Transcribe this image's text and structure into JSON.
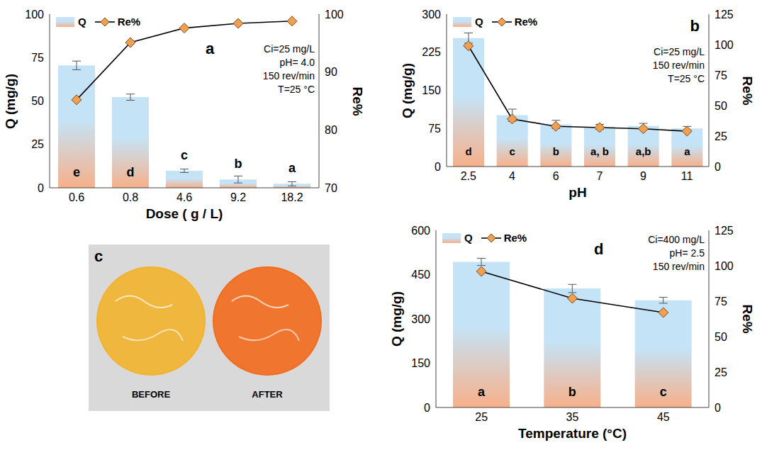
{
  "chart_data": [
    {
      "type": "bar",
      "title": "a",
      "categories": [
        "0.6",
        "0.8",
        "4.6",
        "9.2",
        "18.2"
      ],
      "x_label": "Dose ( g / L)",
      "y_label": "Q (mg/g)",
      "y2_label": "Re%",
      "ylim": [
        0,
        100
      ],
      "yticks": [
        0,
        25,
        50,
        75,
        100
      ],
      "y2lim": [
        70,
        100
      ],
      "y2ticks": [
        70,
        80,
        90,
        100
      ],
      "legend": "upper left",
      "annotations": [
        "Ci=25 mg/L",
        "pH= 4.0",
        "150 rev/min",
        "T=25 °C"
      ],
      "series": [
        {
          "name": "Q",
          "type": "bar",
          "color": "#c5e3f6",
          "values": [
            70.5,
            52.2,
            9.8,
            4.8,
            2.3
          ],
          "errors": [
            2.5,
            1.8,
            1.0,
            2.0,
            1.2
          ],
          "letters": [
            "e",
            "d",
            "c",
            "b",
            "a"
          ]
        },
        {
          "name": "Re%",
          "type": "line",
          "axis": "y2",
          "color": "#f0a050",
          "marker": "diamond",
          "values": [
            85.2,
            95.1,
            97.6,
            98.4,
            98.8
          ]
        }
      ]
    },
    {
      "type": "bar",
      "title": "b",
      "categories": [
        "2.5",
        "4",
        "6",
        "7",
        "9",
        "11"
      ],
      "x_label": "pH",
      "y_label": "Q (mg/g)",
      "y2_label": "Re%",
      "ylim": [
        0,
        300
      ],
      "yticks": [
        0,
        75,
        150,
        225,
        300
      ],
      "y2lim": [
        0,
        125
      ],
      "y2ticks": [
        0,
        25,
        50,
        75,
        100,
        125
      ],
      "legend": "upper left",
      "annotations": [
        "Ci=25 mg/L",
        "150 rev/min",
        "T=25 °C"
      ],
      "series": [
        {
          "name": "Q",
          "type": "bar",
          "color": "#c5e3f6",
          "values": [
            253,
            101,
            83,
            78,
            80,
            75
          ],
          "errors": [
            10,
            12,
            8,
            5,
            5,
            4
          ],
          "letters": [
            "d",
            "c",
            "b",
            "a, b",
            "a,b",
            "a"
          ]
        },
        {
          "name": "Re%",
          "type": "line",
          "axis": "y2",
          "color": "#f0a050",
          "marker": "diamond",
          "values": [
            99,
            39,
            33,
            32,
            31,
            29
          ]
        }
      ]
    },
    {
      "type": "bar",
      "title": "d",
      "categories": [
        "25",
        "35",
        "45"
      ],
      "x_label": "Temperature (°C)",
      "y_label": "Q (mg/g)",
      "y2_label": "Re%",
      "ylim": [
        0,
        600
      ],
      "yticks": [
        0,
        150,
        300,
        450,
        600
      ],
      "y2lim": [
        0,
        125
      ],
      "y2ticks": [
        0,
        25,
        50,
        75,
        100,
        125
      ],
      "legend": "upper left",
      "annotations": [
        "Ci=400 mg/L",
        "pH= 2.5",
        "150 rev/min"
      ],
      "series": [
        {
          "name": "Q",
          "type": "bar",
          "color": "#c5e3f6",
          "values": [
            493,
            403,
            363
          ],
          "errors": [
            12,
            14,
            10
          ],
          "letters": [
            "a",
            "b",
            "c"
          ]
        },
        {
          "name": "Re%",
          "type": "line",
          "axis": "y2",
          "color": "#f0a050",
          "marker": "diamond",
          "values": [
            96,
            77,
            67
          ]
        }
      ]
    }
  ],
  "photo_panel": {
    "label": "c",
    "items": [
      {
        "text": "BEFORE",
        "color": "#f2b22c"
      },
      {
        "text": "AFTER",
        "color": "#f26a1c"
      }
    ]
  }
}
